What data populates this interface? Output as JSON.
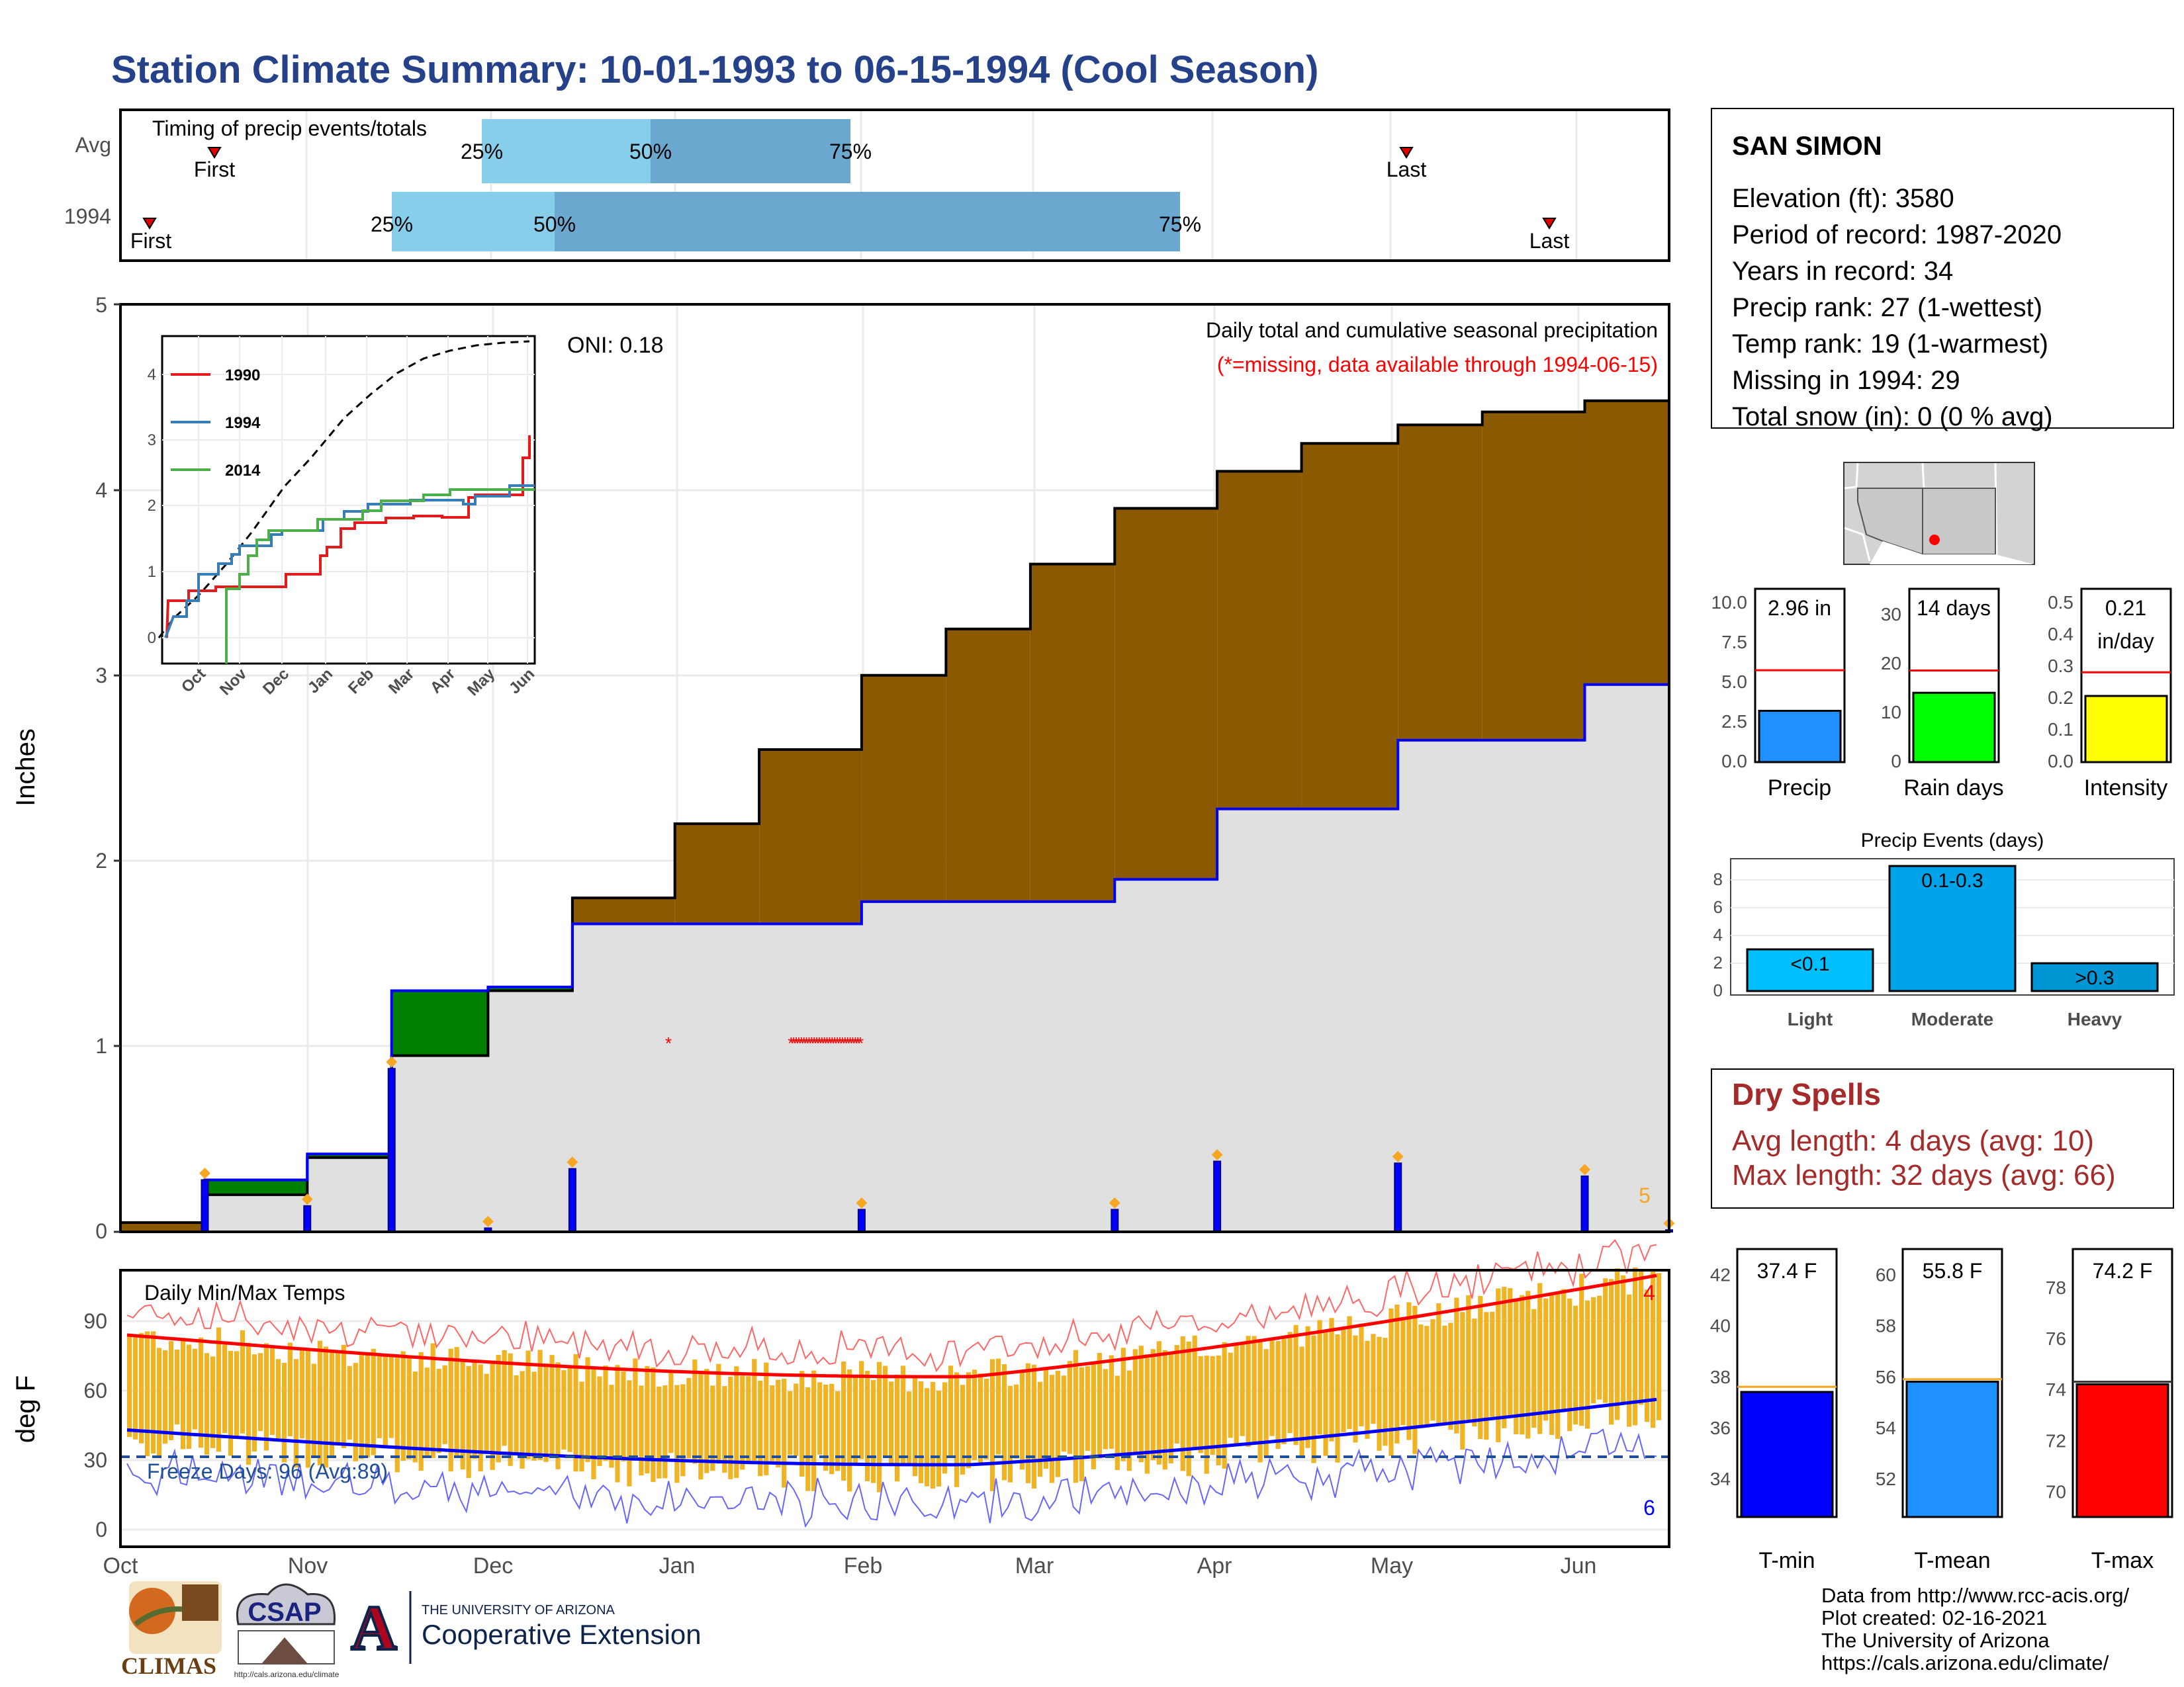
{
  "title": "Station Climate Summary: 10-01-1993 to 06-15-1994 (Cool Season)",
  "colors": {
    "title": "#24418a",
    "brown": "#8b5a00",
    "green": "#008000",
    "grey_fill": "#e0e0e0",
    "blue": "#0000ff",
    "orange": "#f0b323",
    "red": "#ff0000"
  },
  "timing": {
    "label": "Timing of precip events/totals",
    "rows": [
      {
        "label": "Avg",
        "first_label": "First",
        "last_label": "Last",
        "q25": "25%",
        "q50": "50%",
        "q75": "75%"
      },
      {
        "label": "1994",
        "first_label": "First",
        "last_label": "Last",
        "q25": "25%",
        "q50": "50%",
        "q75": "75%"
      }
    ]
  },
  "precip_panel": {
    "ylabel": "Inches",
    "yticks": [
      "0",
      "1",
      "2",
      "3",
      "4",
      "5"
    ],
    "header": "Daily total and cumulative seasonal precipitation",
    "note": "(*=missing, data available through 1994-06-15)",
    "oni": "ONI: 0.18",
    "missing_marker": "*",
    "count_label": "5"
  },
  "inset": {
    "legend": [
      "1990",
      "1994",
      "2014"
    ],
    "legend_colors": [
      "#e41a1c",
      "#377eb8",
      "#4daf4a"
    ],
    "yticks": [
      "0",
      "1",
      "2",
      "3",
      "4"
    ],
    "xticks": [
      "Oct",
      "Nov",
      "Dec",
      "Jan",
      "Feb",
      "Mar",
      "Apr",
      "May",
      "Jun"
    ]
  },
  "temp_panel": {
    "ylabel": "deg F",
    "title": "Daily Min/Max Temps",
    "yticks": [
      "0",
      "30",
      "60",
      "90"
    ],
    "freeze": "Freeze Days: 96 (Avg:89)",
    "count_high": "4",
    "count_low": "6"
  },
  "xaxis_months": [
    "Oct",
    "Nov",
    "Dec",
    "Jan",
    "Feb",
    "Mar",
    "Apr",
    "May",
    "Jun"
  ],
  "station": {
    "name": "SAN SIMON",
    "lines": [
      "Elevation (ft): 3580",
      "Period of record: 1987-2020",
      "Years in record: 34",
      "Precip rank: 27 (1-wettest)",
      "Temp rank: 19 (1-warmest)",
      "Missing in 1994: 29",
      "Total snow (in): 0 (0 % avg)"
    ]
  },
  "mini_bars": [
    {
      "name": "Precip",
      "value_label": "2.96 in",
      "value": 2.96,
      "avg": 5.3,
      "yticks": [
        "0.0",
        "2.5",
        "5.0",
        "7.5",
        "10.0"
      ],
      "ymax": 10,
      "color": "#1e90ff"
    },
    {
      "name": "Rain days",
      "value_label": "14 days",
      "value": 14,
      "avg": 18.5,
      "yticks": [
        "0",
        "10",
        "20",
        "30"
      ],
      "ymax": 35,
      "color": "#00ff00"
    },
    {
      "name": "Intensity",
      "value_label_1": "0.21",
      "value_label_2": "in/day",
      "value": 0.21,
      "avg": 0.285,
      "yticks": [
        "0.0",
        "0.1",
        "0.2",
        "0.3",
        "0.4",
        "0.5"
      ],
      "ymax": 0.55,
      "color": "#ffff00"
    }
  ],
  "precip_events": {
    "title": "Precip Events (days)",
    "yticks": [
      "0",
      "2",
      "4",
      "6",
      "8"
    ],
    "categories": [
      "Light",
      "Moderate",
      "Heavy"
    ],
    "labels": [
      "<0.1",
      "0.1-0.3",
      ">0.3"
    ],
    "values": [
      3,
      9,
      2
    ],
    "colors": [
      "#00bfff",
      "#00a2e8",
      "#0096d6"
    ]
  },
  "dry_spells": {
    "title": "Dry Spells",
    "avg": "Avg length: 4 days (avg: 10)",
    "max": "Max length: 32 days (avg: 66)"
  },
  "temp_bars": [
    {
      "name": "T-min",
      "value_label": "37.4 F",
      "value": 37.4,
      "avg": 37.6,
      "yticks": [
        "34",
        "36",
        "38",
        "40",
        "42"
      ],
      "ymin": 32.5,
      "ymax": 43,
      "color": "#0000ff"
    },
    {
      "name": "T-mean",
      "value_label": "55.8 F",
      "value": 55.8,
      "avg": 55.9,
      "yticks": [
        "52",
        "54",
        "56",
        "58",
        "60"
      ],
      "ymin": 50.5,
      "ymax": 61,
      "color": "#1e90ff"
    },
    {
      "name": "T-max",
      "value_label": "74.2 F",
      "value": 74.2,
      "avg": 74.3,
      "yticks": [
        "70",
        "72",
        "74",
        "76",
        "78"
      ],
      "ymin": 69,
      "ymax": 79.5,
      "color": "#ff0000"
    }
  ],
  "source": [
    "Data from http://www.rcc-acis.org/",
    "Plot created: 02-16-2021",
    "The University of Arizona",
    "https://cals.arizona.edu/climate/"
  ],
  "logos": {
    "climas": "CLIMAS",
    "csap": "CSAP",
    "csap_url": "http://cals.arizona.edu/climate",
    "ua_small": "THE UNIVERSITY OF ARIZONA",
    "ua_big": "Cooperative Extension"
  },
  "chart_data": {
    "type": "area",
    "title": "Daily total and cumulative seasonal precipitation",
    "xlabel": "",
    "ylabel": "Inches",
    "ylim": [
      0,
      5
    ],
    "x": [
      "1993-10-01",
      "1993-10-15",
      "1993-11-01",
      "1993-11-15",
      "1993-12-01",
      "1993-12-15",
      "1994-01-01",
      "1994-01-15",
      "1994-02-01",
      "1994-02-15",
      "1994-03-01",
      "1994-03-15",
      "1994-04-01",
      "1994-04-15",
      "1994-05-01",
      "1994-05-15",
      "1994-06-01",
      "1994-06-15"
    ],
    "series": [
      {
        "name": "Avg cumulative",
        "values": [
          0.05,
          0.2,
          0.4,
          0.95,
          1.3,
          1.8,
          2.2,
          2.6,
          3.0,
          3.25,
          3.6,
          3.9,
          4.1,
          4.25,
          4.35,
          4.42,
          4.48,
          4.52
        ]
      },
      {
        "name": "1994 cumulative",
        "values": [
          0.0,
          0.28,
          0.42,
          1.3,
          1.32,
          1.66,
          1.66,
          1.66,
          1.78,
          1.78,
          1.78,
          1.9,
          2.28,
          2.28,
          2.65,
          2.65,
          2.95,
          2.96
        ]
      }
    ]
  }
}
